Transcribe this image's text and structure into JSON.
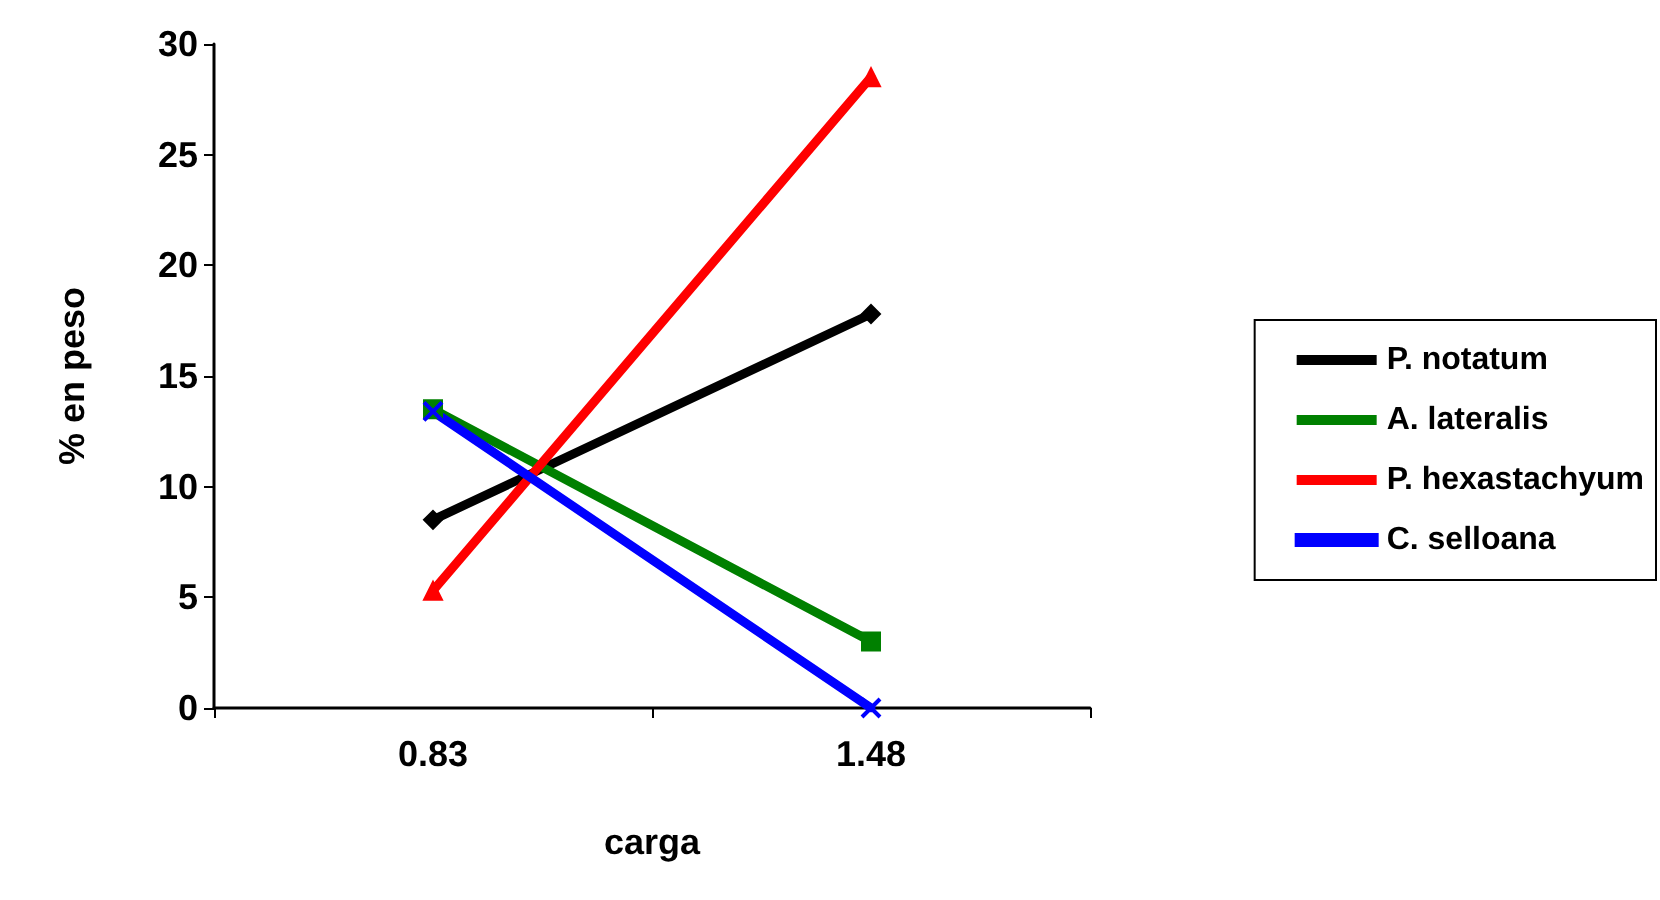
{
  "chart_data": {
    "type": "line",
    "xlabel": "carga",
    "ylabel": "% en peso",
    "categories": [
      "0.83",
      "1.48"
    ],
    "series": [
      {
        "name": "P. notatum",
        "color": "#000000",
        "marker": "diamond",
        "values": [
          8.5,
          17.8
        ]
      },
      {
        "name": "A. lateralis",
        "color": "#008000",
        "marker": "square",
        "values": [
          13.5,
          3
        ]
      },
      {
        "name": "P. hexastachyum",
        "color": "#ff0000",
        "marker": "triangle",
        "values": [
          5.3,
          28.5
        ]
      },
      {
        "name": "C. selloana",
        "color": "#0000ff",
        "marker": "cross",
        "values": [
          13.4,
          0
        ]
      }
    ],
    "ylim": [
      0,
      30
    ],
    "yticks": [
      0,
      5,
      10,
      15,
      20,
      25,
      30
    ],
    "grid": false,
    "legend": "right"
  }
}
